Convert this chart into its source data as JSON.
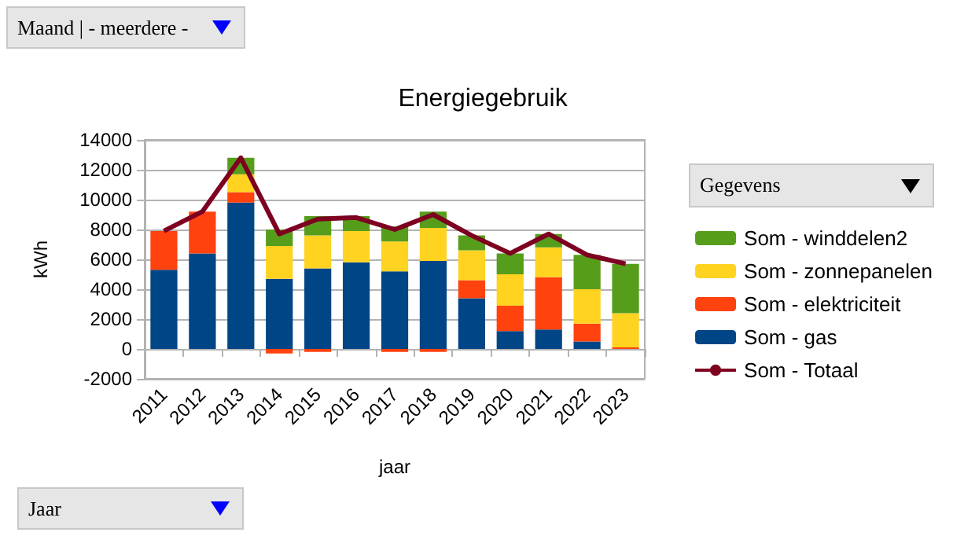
{
  "chart_data": {
    "type": "bar",
    "title": "Energiegebruik",
    "xlabel": "jaar",
    "ylabel": "kWh",
    "categories": [
      "2011",
      "2012",
      "2013",
      "2014",
      "2015",
      "2016",
      "2017",
      "2018",
      "2019",
      "2020",
      "2021",
      "2022",
      "2023"
    ],
    "stacked": true,
    "series": [
      {
        "name": "Som - gas",
        "color": "#004586",
        "values": [
          5300,
          6400,
          9800,
          4700,
          5400,
          5800,
          5200,
          5900,
          3400,
          1200,
          1300,
          500,
          0
        ]
      },
      {
        "name": "Som - elektriciteit",
        "color": "#ff420e",
        "values": [
          2600,
          2800,
          700,
          -300,
          -200,
          0,
          -200,
          -200,
          1200,
          1700,
          3500,
          1200,
          100
        ]
      },
      {
        "name": "Som - zonnepanelen",
        "color": "#ffd320",
        "values": [
          0,
          0,
          1200,
          2200,
          2200,
          2100,
          2000,
          2200,
          2000,
          2100,
          2000,
          2300,
          2300
        ]
      },
      {
        "name": "Som - winddelen2",
        "color": "#579d1c",
        "values": [
          0,
          0,
          1100,
          1100,
          1300,
          1000,
          1000,
          1100,
          1000,
          1400,
          900,
          2300,
          3300
        ]
      },
      {
        "name": "Som - Totaal",
        "type": "line",
        "color": "#7e0021",
        "values": [
          7900,
          9200,
          12800,
          7700,
          8700,
          8800,
          8000,
          9000,
          7600,
          6400,
          7700,
          6300,
          5700
        ]
      }
    ],
    "ylim": [
      -2000,
      14000
    ],
    "yticks": [
      -2000,
      0,
      2000,
      4000,
      6000,
      8000,
      10000,
      12000,
      14000
    ],
    "grid": "y",
    "legend": "right",
    "marker": "none",
    "annotations": [
      "Maand | - meerdere -",
      "Gegevens",
      "Jaar"
    ]
  }
}
